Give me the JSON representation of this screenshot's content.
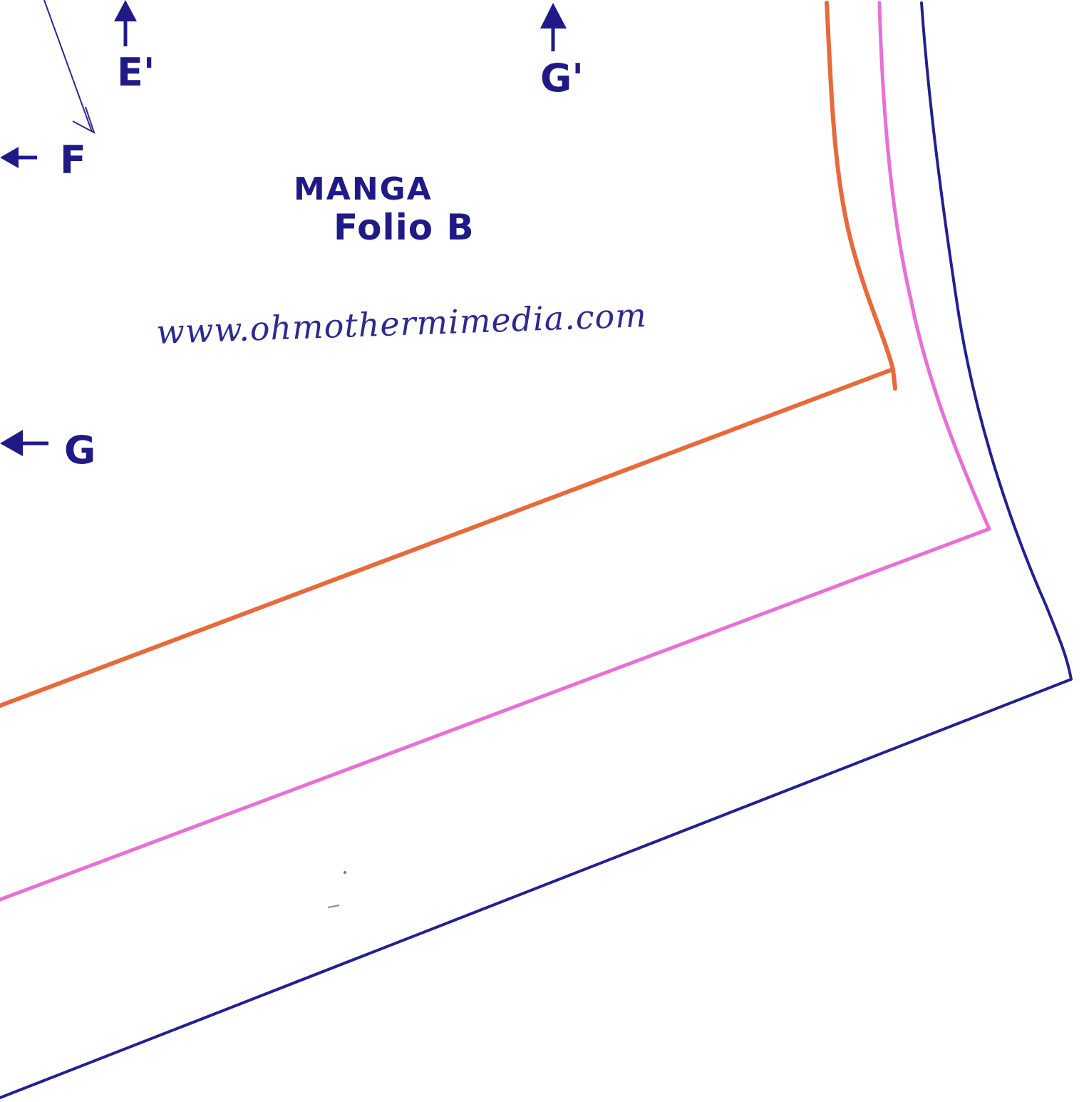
{
  "pattern": {
    "title": "MANGA",
    "subtitle": "Folio B",
    "website": "www.ohmothermimedia.com"
  },
  "markers": {
    "e_prime": "E'",
    "g_prime": "G'",
    "f": "F",
    "g": "G"
  },
  "colors": {
    "ink": "#1f1a86",
    "orange_line": "#e66a3c",
    "pink_line": "#e86fd5",
    "navy_line": "#23208e",
    "paper": "#ffffff"
  }
}
